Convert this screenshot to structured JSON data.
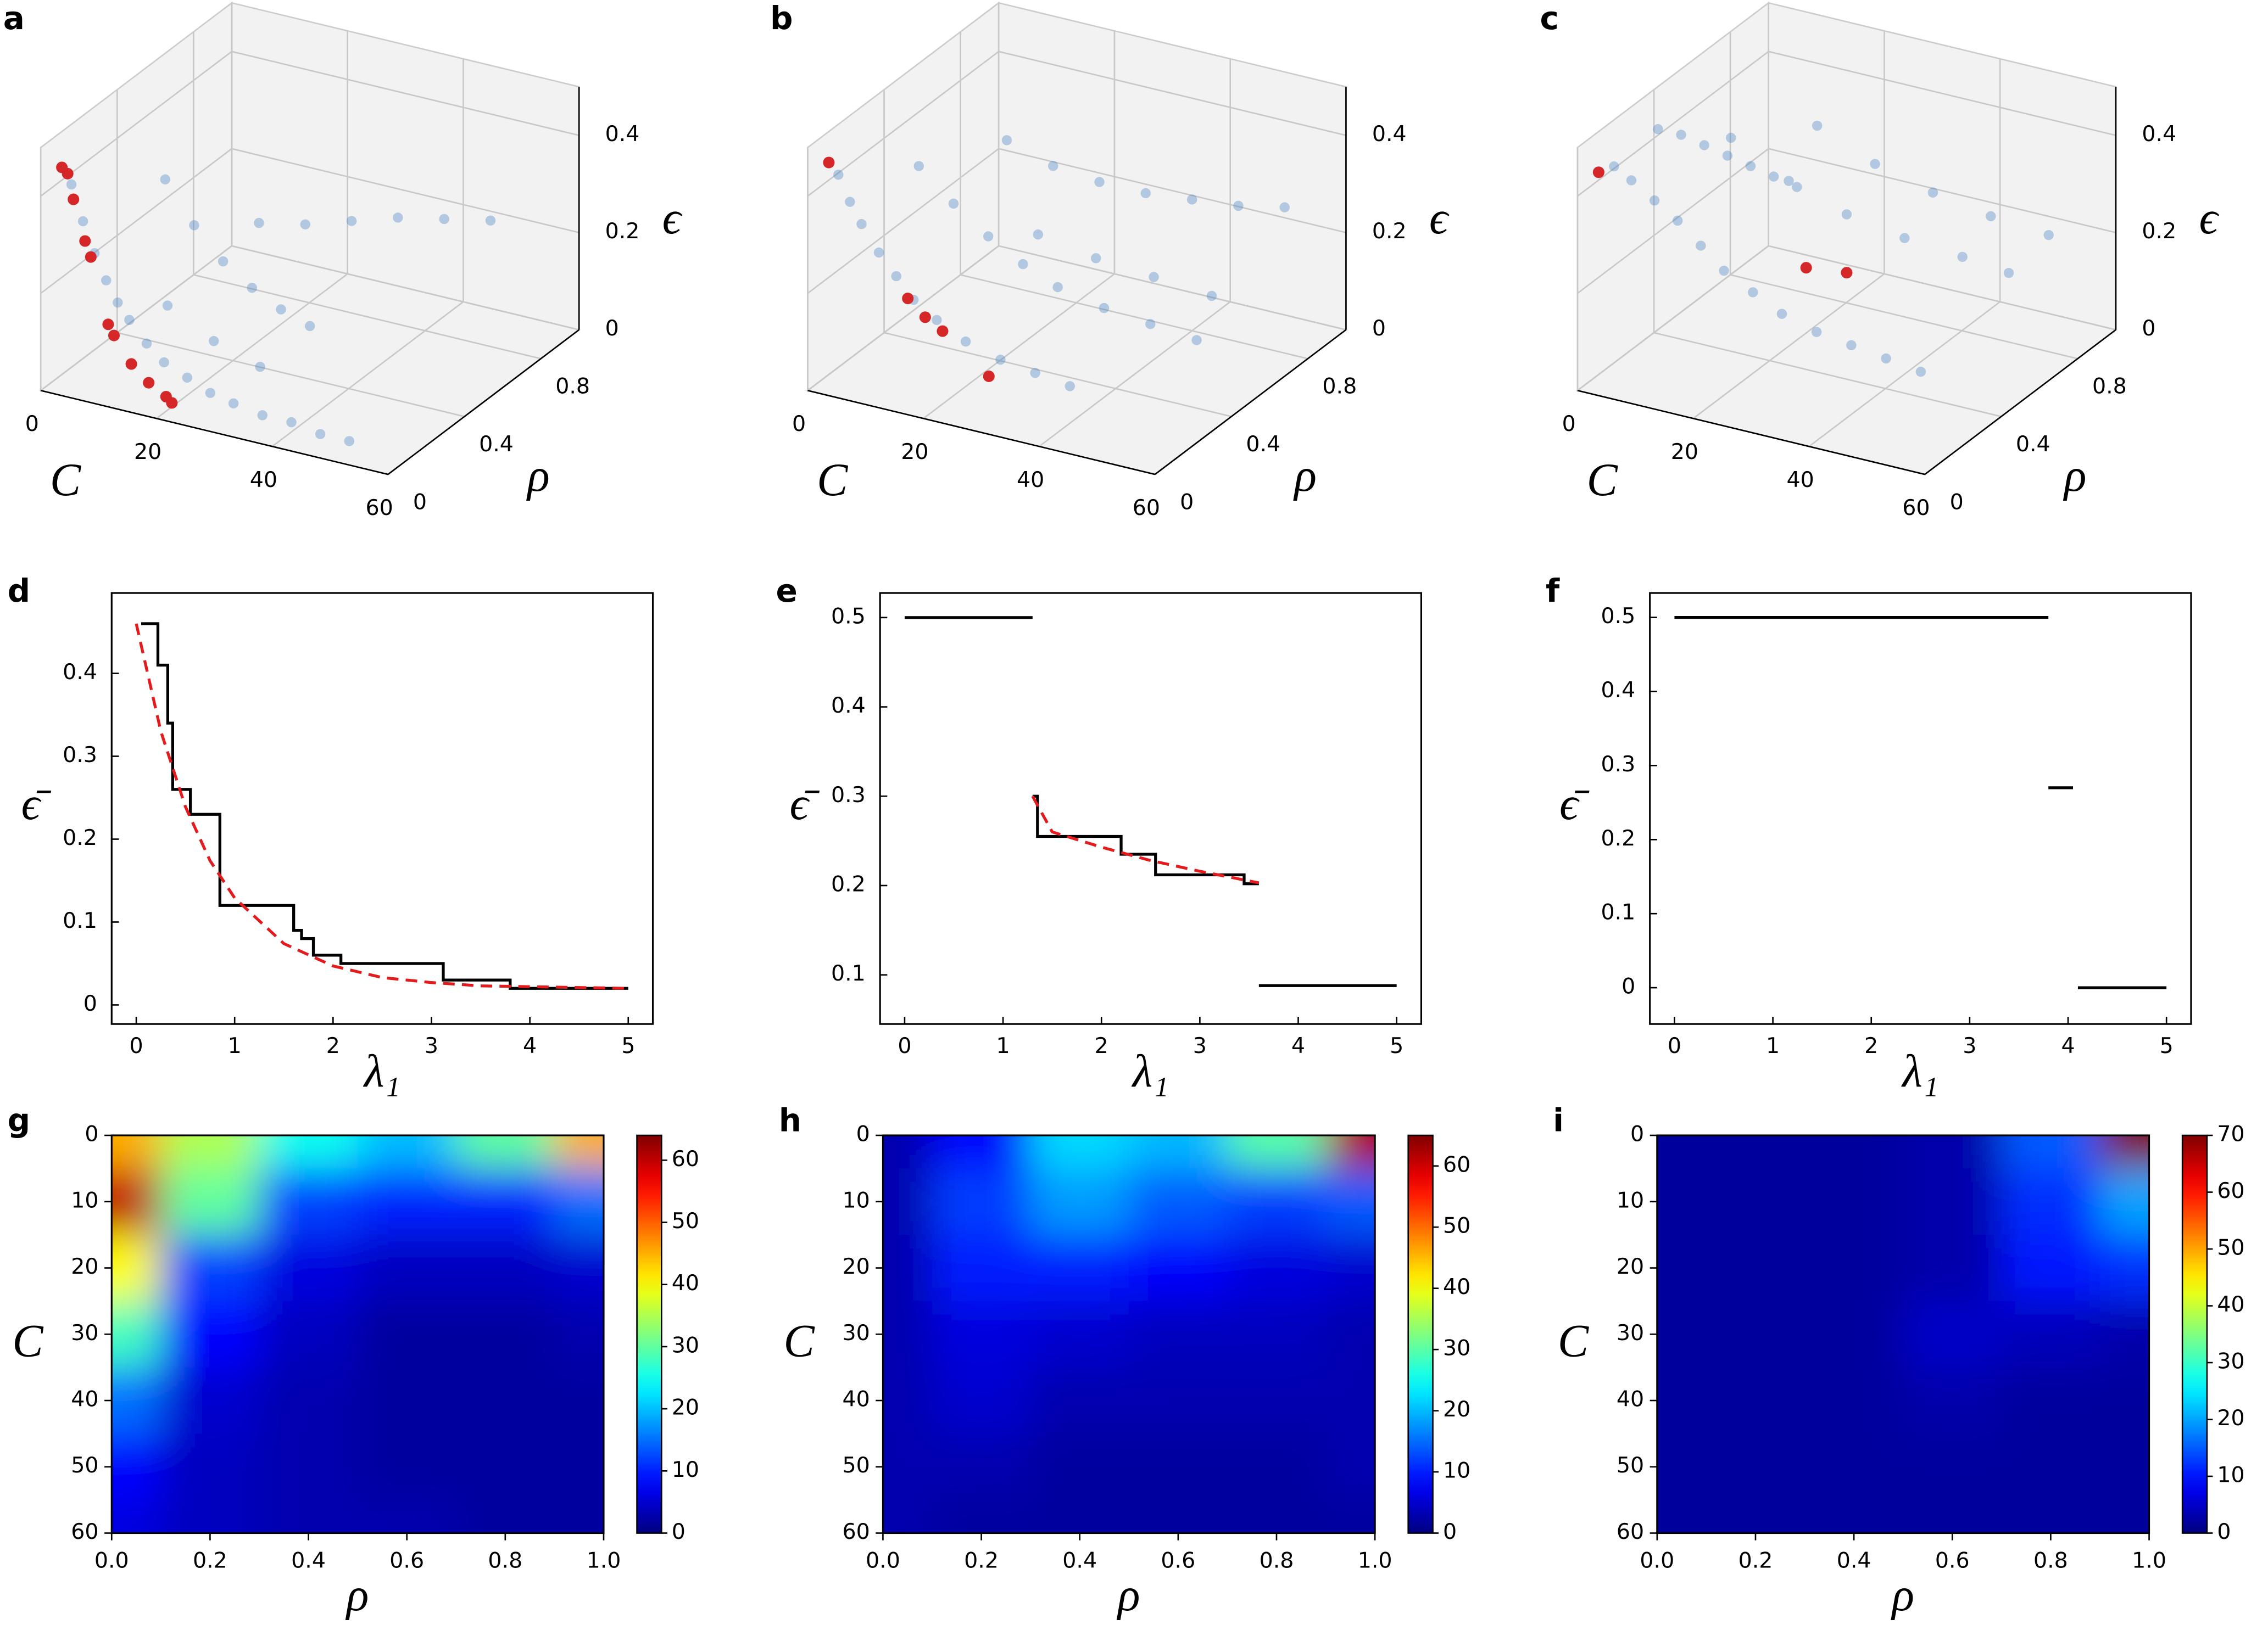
{
  "chart_data": [
    {
      "type": "scatter3d",
      "panel_label": "a",
      "xlabel": "C",
      "ylabel": "ρ",
      "zlabel": "ϵ",
      "xlim": [
        0,
        60
      ],
      "ylim": [
        0,
        1
      ],
      "zlim": [
        0,
        0.5
      ],
      "xticks": [
        0,
        20,
        40,
        60
      ],
      "yticks": [
        0,
        0.4,
        0.8
      ],
      "zticks": [
        0,
        0.2,
        0.4
      ],
      "series": [
        {
          "color": "#3a7bbf",
          "opacity": 0.35,
          "C": [
            2,
            4,
            6,
            8,
            10,
            12,
            15,
            18,
            22,
            26,
            30,
            35,
            40,
            45,
            50,
            5,
            10,
            15,
            20,
            25,
            30,
            8,
            16,
            24,
            32,
            40,
            48,
            12,
            20,
            28
          ],
          "rho": [
            0.1,
            0.1,
            0.1,
            0.1,
            0.1,
            0.1,
            0.1,
            0.1,
            0.1,
            0.1,
            0.1,
            0.1,
            0.1,
            0.1,
            0.1,
            0.5,
            0.5,
            0.5,
            0.5,
            0.5,
            0.5,
            0.9,
            0.9,
            0.9,
            0.9,
            0.9,
            0.9,
            0.3,
            0.3,
            0.3
          ],
          "eps": [
            0.4,
            0.33,
            0.27,
            0.22,
            0.18,
            0.15,
            0.11,
            0.08,
            0.06,
            0.04,
            0.03,
            0.02,
            0.02,
            0.01,
            0.01,
            0.3,
            0.22,
            0.16,
            0.12,
            0.09,
            0.07,
            0.1,
            0.12,
            0.15,
            0.18,
            0.2,
            0.22,
            0.12,
            0.07,
            0.04
          ]
        },
        {
          "color": "#d62728",
          "opacity": 1,
          "C": [
            2,
            3,
            4,
            6,
            7,
            10,
            11,
            14,
            17,
            20,
            21
          ],
          "rho": [
            0.05,
            0.05,
            0.05,
            0.05,
            0.05,
            0.05,
            0.05,
            0.05,
            0.05,
            0.05,
            0.05
          ],
          "eps": [
            0.45,
            0.44,
            0.39,
            0.31,
            0.28,
            0.15,
            0.13,
            0.08,
            0.05,
            0.03,
            0.02
          ]
        }
      ]
    },
    {
      "type": "scatter3d",
      "panel_label": "b",
      "xlabel": "C",
      "ylabel": "ρ",
      "zlabel": "ϵ",
      "xlim": [
        0,
        60
      ],
      "ylim": [
        0,
        1
      ],
      "zlim": [
        0,
        0.5
      ],
      "xticks": [
        0,
        20,
        40,
        60
      ],
      "yticks": [
        0,
        0.4,
        0.8
      ],
      "zticks": [
        0,
        0.2,
        0.4
      ],
      "series": [
        {
          "color": "#3a7bbf",
          "opacity": 0.35,
          "C": [
            2,
            4,
            6,
            9,
            12,
            15,
            19,
            24,
            30,
            36,
            42,
            6,
            12,
            18,
            24,
            30,
            38,
            46,
            54,
            8,
            16,
            24,
            32,
            40,
            48,
            56,
            20,
            30,
            40,
            50
          ],
          "rho": [
            0.1,
            0.1,
            0.1,
            0.1,
            0.1,
            0.1,
            0.1,
            0.1,
            0.1,
            0.1,
            0.1,
            0.4,
            0.4,
            0.4,
            0.4,
            0.4,
            0.4,
            0.4,
            0.4,
            0.8,
            0.8,
            0.8,
            0.8,
            0.8,
            0.8,
            0.8,
            0.6,
            0.6,
            0.6,
            0.6
          ],
          "eps": [
            0.42,
            0.37,
            0.33,
            0.28,
            0.24,
            0.2,
            0.17,
            0.14,
            0.12,
            0.11,
            0.1,
            0.36,
            0.3,
            0.25,
            0.21,
            0.18,
            0.16,
            0.15,
            0.14,
            0.3,
            0.27,
            0.26,
            0.26,
            0.27,
            0.28,
            0.3,
            0.2,
            0.18,
            0.17,
            0.16
          ]
        },
        {
          "color": "#d62728",
          "opacity": 1,
          "C": [
            2,
            14,
            17,
            20,
            28
          ],
          "rho": [
            0.05,
            0.1,
            0.1,
            0.1,
            0.1
          ],
          "eps": [
            0.46,
            0.2,
            0.17,
            0.15,
            0.08
          ]
        }
      ]
    },
    {
      "type": "scatter3d",
      "panel_label": "c",
      "xlabel": "C",
      "ylabel": "ρ",
      "zlabel": "ϵ",
      "xlim": [
        0,
        60
      ],
      "ylim": [
        0,
        1
      ],
      "zlim": [
        0,
        0.5
      ],
      "xticks": [
        0,
        20,
        40,
        60
      ],
      "yticks": [
        0,
        0.4,
        0.8
      ],
      "zticks": [
        0,
        0.2,
        0.4
      ],
      "series": [
        {
          "color": "#3a7bbf",
          "opacity": 0.35,
          "C": [
            3,
            6,
            10,
            14,
            18,
            22,
            27,
            32,
            38,
            44,
            50,
            56,
            4,
            8,
            12,
            16,
            20,
            24,
            28,
            10,
            20,
            30,
            40,
            50,
            58,
            15,
            25,
            35,
            45,
            55
          ],
          "rho": [
            0.1,
            0.1,
            0.1,
            0.1,
            0.1,
            0.1,
            0.1,
            0.1,
            0.1,
            0.1,
            0.1,
            0.1,
            0.3,
            0.3,
            0.3,
            0.3,
            0.3,
            0.3,
            0.3,
            0.5,
            0.5,
            0.5,
            0.5,
            0.5,
            0.5,
            0.8,
            0.8,
            0.8,
            0.8,
            0.8
          ],
          "eps": [
            0.44,
            0.42,
            0.39,
            0.36,
            0.32,
            0.28,
            0.25,
            0.22,
            0.2,
            0.19,
            0.18,
            0.17,
            0.46,
            0.46,
            0.45,
            0.44,
            0.43,
            0.42,
            0.41,
            0.4,
            0.34,
            0.3,
            0.28,
            0.27,
            0.26,
            0.35,
            0.3,
            0.27,
            0.25,
            0.24
          ]
        },
        {
          "color": "#d62728",
          "opacity": 1,
          "C": [
            2,
            23,
            30
          ],
          "rho": [
            0.05,
            0.5,
            0.5
          ],
          "eps": [
            0.44,
            0.17,
            0.18
          ]
        }
      ]
    },
    {
      "type": "line",
      "panel_label": "d",
      "xlabel": "λ₁",
      "ylabel": "ϵ̄",
      "xlim": [
        -0.25,
        5.25
      ],
      "ylim": [
        -0.023,
        0.497
      ],
      "xticks": [
        0,
        1,
        2,
        3,
        4,
        5
      ],
      "yticks": [
        0,
        0.1,
        0.2,
        0.3,
        0.4
      ],
      "series": [
        {
          "color": "#000000",
          "dash": false,
          "x": [
            0.05,
            0.22,
            0.22,
            0.32,
            0.32,
            0.37,
            0.37,
            0.55,
            0.55,
            0.85,
            0.85,
            1.6,
            1.6,
            1.68,
            1.68,
            1.8,
            1.8,
            2.08,
            2.08,
            3.12,
            3.12,
            3.8,
            3.8,
            5
          ],
          "values": [
            0.46,
            0.46,
            0.41,
            0.41,
            0.34,
            0.34,
            0.26,
            0.26,
            0.23,
            0.23,
            0.12,
            0.12,
            0.09,
            0.09,
            0.08,
            0.08,
            0.06,
            0.06,
            0.05,
            0.05,
            0.03,
            0.03,
            0.02,
            0.02
          ]
        },
        {
          "color": "#e41a1c",
          "dash": true,
          "x": [
            0,
            0.25,
            0.5,
            0.75,
            1,
            1.5,
            2,
            2.5,
            3,
            3.5,
            4,
            4.5,
            5
          ],
          "values": [
            0.46,
            0.33,
            0.239,
            0.174,
            0.129,
            0.074,
            0.047,
            0.033,
            0.027,
            0.023,
            0.022,
            0.021,
            0.02
          ]
        }
      ]
    },
    {
      "type": "line",
      "panel_label": "e",
      "xlabel": "λ₁",
      "ylabel": "ϵ̄",
      "xlim": [
        -0.25,
        5.25
      ],
      "ylim": [
        0.045,
        0.5275
      ],
      "xticks": [
        0,
        1,
        2,
        3,
        4,
        5
      ],
      "yticks": [
        0.1,
        0.2,
        0.3,
        0.4,
        0.5
      ],
      "series": [
        {
          "color": "#000000",
          "dash": false,
          "x": [
            0,
            1.3,
            null,
            1.3,
            1.35,
            1.35,
            2.2,
            2.2,
            2.55,
            2.55,
            3.45,
            3.45,
            3.6,
            null,
            3.6,
            5
          ],
          "values": [
            0.5,
            0.5,
            null,
            0.3,
            0.3,
            0.255,
            0.255,
            0.235,
            0.235,
            0.212,
            0.212,
            0.202,
            0.202,
            null,
            0.088,
            0.088
          ]
        },
        {
          "color": "#e41a1c",
          "dash": true,
          "x": [
            1.3,
            1.5,
            2,
            2.5,
            3,
            3.6
          ],
          "values": [
            0.3,
            0.26,
            0.243,
            0.228,
            0.216,
            0.203
          ]
        }
      ]
    },
    {
      "type": "line",
      "panel_label": "f",
      "xlabel": "λ₁",
      "ylabel": "ϵ̄",
      "xlim": [
        -0.25,
        5.25
      ],
      "ylim": [
        -0.049,
        0.533
      ],
      "xticks": [
        0,
        1,
        2,
        3,
        4,
        5
      ],
      "yticks": [
        0,
        0.1,
        0.2,
        0.3,
        0.4,
        0.5
      ],
      "series": [
        {
          "color": "#000000",
          "dash": false,
          "x": [
            0,
            3.8,
            null,
            3.8,
            4.05,
            null,
            4.1,
            5
          ],
          "values": [
            0.5,
            0.5,
            null,
            0.27,
            0.27,
            null,
            0,
            0
          ]
        }
      ]
    },
    {
      "type": "heatmap",
      "panel_label": "g",
      "xlabel": "ρ",
      "ylabel": "C",
      "xlim": [
        0,
        1
      ],
      "ylim": [
        60,
        0
      ],
      "zlim": [
        0,
        64
      ],
      "xticks": [
        {
          "value": 0,
          "label": "0.0"
        },
        0.2,
        0.4,
        0.6,
        0.8,
        {
          "value": 1,
          "label": "1.0"
        }
      ],
      "yticks": [
        0,
        10,
        20,
        30,
        40,
        50,
        60
      ],
      "cticks": [
        0,
        10,
        20,
        30,
        40,
        50,
        60
      ],
      "x": [
        0,
        0.2,
        0.4,
        0.6,
        0.8,
        1
      ],
      "y": [
        0,
        10,
        20,
        30,
        40,
        50,
        60
      ],
      "z": [
        [
          45,
          35,
          25,
          20,
          30,
          45
        ],
        [
          60,
          30,
          12,
          10,
          10,
          15
        ],
        [
          40,
          12,
          6,
          4,
          4,
          5
        ],
        [
          28,
          8,
          4,
          2,
          2,
          3
        ],
        [
          15,
          5,
          3,
          2,
          2,
          2
        ],
        [
          8,
          4,
          3,
          2,
          2,
          2
        ],
        [
          6,
          4,
          3,
          3,
          2,
          2
        ]
      ]
    },
    {
      "type": "heatmap",
      "panel_label": "h",
      "xlabel": "ρ",
      "ylabel": "C",
      "xlim": [
        0,
        1
      ],
      "ylim": [
        60,
        0
      ],
      "zlim": [
        0,
        65
      ],
      "xticks": [
        {
          "value": 0,
          "label": "0.0"
        },
        0.2,
        0.4,
        0.6,
        0.8,
        {
          "value": 1,
          "label": "1.0"
        }
      ],
      "yticks": [
        0,
        10,
        20,
        30,
        40,
        50,
        60
      ],
      "cticks": [
        0,
        10,
        20,
        30,
        40,
        50,
        60
      ],
      "x": [
        0,
        0.2,
        0.4,
        0.6,
        0.8,
        1
      ],
      "y": [
        0,
        10,
        20,
        30,
        40,
        50,
        60
      ],
      "z": [
        [
          3,
          8,
          22,
          20,
          30,
          62
        ],
        [
          3,
          12,
          18,
          14,
          12,
          14
        ],
        [
          3,
          10,
          10,
          8,
          6,
          5
        ],
        [
          3,
          6,
          5,
          4,
          4,
          3
        ],
        [
          3,
          5,
          3,
          3,
          3,
          3
        ],
        [
          3,
          3,
          2,
          2,
          2,
          3
        ],
        [
          3,
          2,
          2,
          2,
          2,
          2
        ]
      ]
    },
    {
      "type": "heatmap",
      "panel_label": "i",
      "xlabel": "ρ",
      "ylabel": "C",
      "xlim": [
        0,
        1
      ],
      "ylim": [
        60,
        0
      ],
      "zlim": [
        0,
        70
      ],
      "xticks": [
        {
          "value": 0,
          "label": "0.0"
        },
        0.2,
        0.4,
        0.6,
        0.8,
        {
          "value": 1,
          "label": "1.0"
        }
      ],
      "yticks": [
        0,
        10,
        20,
        30,
        40,
        50,
        60
      ],
      "cticks": [
        0,
        10,
        20,
        30,
        40,
        50,
        60,
        70
      ],
      "x": [
        0,
        0.2,
        0.4,
        0.6,
        0.8,
        1
      ],
      "y": [
        0,
        10,
        20,
        30,
        40,
        50,
        60
      ],
      "z": [
        [
          2,
          2,
          2,
          3,
          15,
          70
        ],
        [
          2,
          2,
          2,
          3,
          12,
          20
        ],
        [
          2,
          2,
          2,
          3,
          10,
          12
        ],
        [
          2,
          2,
          2,
          5,
          4,
          3
        ],
        [
          2,
          2,
          2,
          3,
          2,
          2
        ],
        [
          2,
          2,
          2,
          2,
          2,
          2
        ],
        [
          2,
          2,
          2,
          2,
          2,
          2
        ]
      ]
    }
  ]
}
